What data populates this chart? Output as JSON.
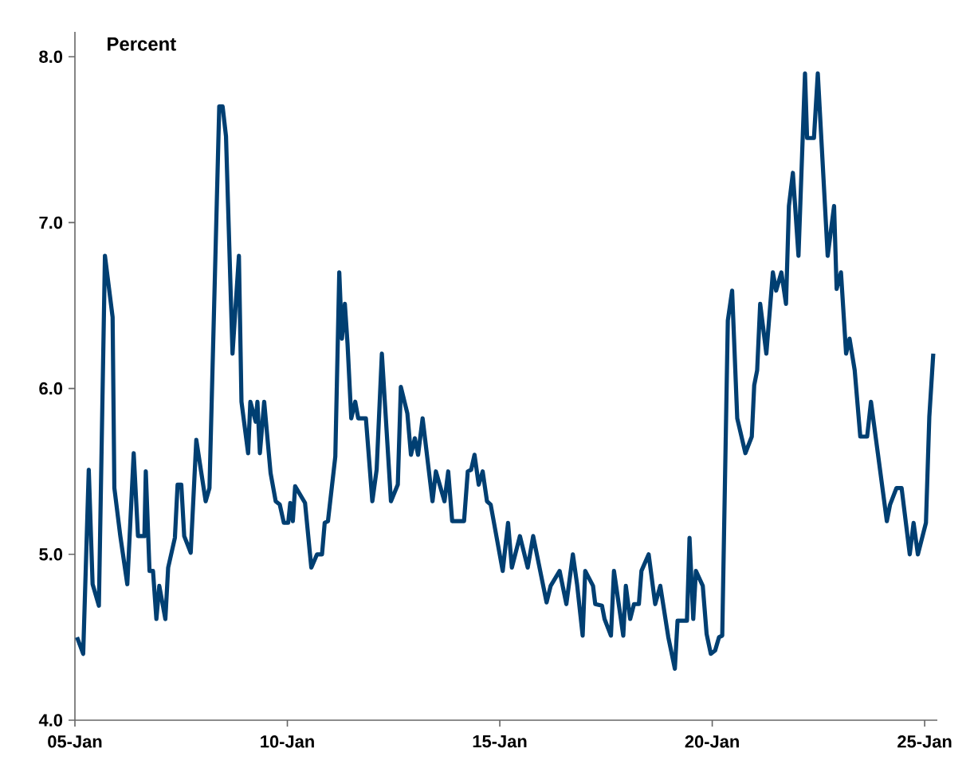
{
  "chart_data": {
    "type": "line",
    "ylabel": "Percent",
    "x": [
      "2005-01-19",
      "2005-03-13",
      "2005-04-30",
      "2005-06-02",
      "2005-07-26",
      "2005-09-16",
      "2005-11-21",
      "2005-12-06",
      "2006-01-26",
      "2006-03-27",
      "2006-05-21",
      "2006-06-27",
      "2006-08-21",
      "2006-09-02",
      "2006-10-04",
      "2006-11-03",
      "2006-12-02",
      "2006-12-27",
      "2007-02-17",
      "2007-03-13",
      "2007-05-10",
      "2007-06-02",
      "2007-07-04",
      "2007-07-29",
      "2007-09-23",
      "2007-11-10",
      "2008-01-29",
      "2008-03-02",
      "2008-05-25",
      "2008-06-23",
      "2008-07-22",
      "2008-09-16",
      "2008-11-10",
      "2008-12-02",
      "2009-01-29",
      "2009-02-17",
      "2009-04-04",
      "2009-04-19",
      "2009-05-10",
      "2009-06-16",
      "2009-08-10",
      "2009-09-23",
      "2009-10-28",
      "2009-12-02",
      "2010-01-08",
      "2010-01-26",
      "2010-02-17",
      "2010-03-09",
      "2010-06-02",
      "2010-07-26",
      "2010-09-13",
      "2010-10-26",
      "2010-11-18",
      "2010-12-16",
      "2011-02-17",
      "2011-03-23",
      "2011-04-15",
      "2011-05-10",
      "2011-06-02",
      "2011-07-04",
      "2011-08-07",
      "2011-09-02",
      "2011-11-07",
      "2012-01-01",
      "2012-02-07",
      "2012-03-23",
      "2012-06-09",
      "2012-08-07",
      "2012-09-02",
      "2012-10-28",
      "2012-11-28",
      "2013-01-01",
      "2013-01-29",
      "2013-03-09",
      "2013-06-02",
      "2013-07-01",
      "2013-08-07",
      "2013-09-13",
      "2013-10-15",
      "2013-11-18",
      "2014-02-28",
      "2014-04-01",
      "2014-04-30",
      "2014-05-29",
      "2014-07-04",
      "2014-08-07",
      "2014-09-13",
      "2014-10-15",
      "2015-01-26",
      "2015-03-13",
      "2015-04-15",
      "2015-06-23",
      "2015-08-29",
      "2015-10-15",
      "2016-02-07",
      "2016-03-13",
      "2016-05-29",
      "2016-07-26",
      "2016-09-20",
      "2016-10-26",
      "2016-12-13",
      "2017-01-05",
      "2017-03-13",
      "2017-04-01",
      "2017-05-29",
      "2017-06-20",
      "2017-08-14",
      "2017-09-09",
      "2017-11-28",
      "2017-12-20",
      "2018-01-26",
      "2018-02-28",
      "2018-04-11",
      "2018-05-03",
      "2018-07-04",
      "2018-08-29",
      "2018-10-12",
      "2018-12-20",
      "2019-02-14",
      "2019-03-09",
      "2019-05-29",
      "2019-06-20",
      "2019-07-22",
      "2019-08-14",
      "2019-10-12",
      "2019-11-14",
      "2019-12-20",
      "2020-01-26",
      "2020-02-28",
      "2020-03-27",
      "2020-05-14",
      "2020-06-20",
      "2020-08-03",
      "2020-10-12",
      "2020-12-06",
      "2020-12-27",
      "2021-01-22",
      "2021-02-17",
      "2021-04-11",
      "2021-06-06",
      "2021-07-04",
      "2021-08-18",
      "2021-09-27",
      "2021-10-22",
      "2021-11-25",
      "2022-01-12",
      "2022-03-09",
      "2022-03-27",
      "2022-05-25",
      "2022-06-27",
      "2022-09-20",
      "2022-11-14",
      "2022-12-06",
      "2023-01-12",
      "2023-02-25",
      "2023-03-27",
      "2023-05-10",
      "2023-06-27",
      "2023-08-25",
      "2023-09-27",
      "2023-11-25",
      "2024-02-10",
      "2024-03-09",
      "2024-05-03",
      "2024-06-16",
      "2024-08-25",
      "2024-09-27",
      "2024-11-03",
      "2025-01-12",
      "2025-02-10",
      "2025-03-16"
    ],
    "series": [
      {
        "color": "#003f72",
        "values": [
          4.5,
          4.4,
          5.51,
          4.82,
          4.69,
          6.8,
          6.43,
          5.4,
          5.11,
          4.82,
          5.61,
          5.11,
          5.11,
          5.5,
          4.9,
          4.9,
          4.61,
          4.81,
          4.61,
          4.92,
          5.1,
          5.42,
          5.42,
          5.11,
          5.01,
          5.69,
          5.32,
          5.4,
          7.7,
          7.7,
          7.52,
          6.21,
          6.8,
          5.92,
          5.61,
          5.92,
          5.8,
          5.92,
          5.61,
          5.92,
          5.49,
          5.32,
          5.3,
          5.19,
          5.19,
          5.31,
          5.2,
          5.41,
          5.31,
          4.92,
          5.0,
          5.0,
          5.19,
          5.2,
          5.59,
          6.7,
          6.3,
          6.51,
          6.27,
          5.82,
          5.92,
          5.82,
          5.82,
          5.32,
          5.51,
          6.21,
          5.32,
          5.42,
          6.01,
          5.85,
          5.6,
          5.7,
          5.6,
          5.82,
          5.32,
          5.5,
          5.41,
          5.32,
          5.5,
          5.2,
          5.2,
          5.5,
          5.51,
          5.6,
          5.42,
          5.5,
          5.32,
          5.3,
          4.9,
          5.19,
          4.92,
          5.11,
          4.92,
          5.11,
          4.71,
          4.81,
          4.9,
          4.7,
          5.0,
          4.82,
          4.51,
          4.9,
          4.81,
          4.7,
          4.69,
          4.61,
          4.51,
          4.9,
          4.51,
          4.81,
          4.61,
          4.7,
          4.7,
          4.9,
          5.0,
          4.7,
          4.81,
          4.5,
          4.31,
          4.6,
          4.6,
          5.1,
          4.61,
          4.9,
          4.81,
          4.52,
          4.4,
          4.42,
          4.5,
          4.51,
          6.41,
          6.59,
          5.82,
          5.61,
          5.71,
          6.02,
          6.11,
          6.51,
          6.21,
          6.7,
          6.59,
          6.7,
          6.51,
          7.1,
          7.3,
          6.8,
          7.9,
          7.51,
          7.51,
          7.9,
          6.8,
          7.1,
          6.6,
          6.7,
          6.21,
          6.3,
          6.11,
          5.71,
          5.71,
          5.92,
          5.61,
          5.2,
          5.3,
          5.4,
          5.4,
          5.0,
          5.19,
          5.0,
          5.19,
          5.83,
          6.21
        ]
      }
    ],
    "xlim": [
      "2005-01-01",
      "2025-04-20"
    ],
    "xticks": [
      {
        "value": "2005-01-01",
        "label": "05-Jan"
      },
      {
        "value": "2010-01-01",
        "label": "10-Jan"
      },
      {
        "value": "2015-01-01",
        "label": "15-Jan"
      },
      {
        "value": "2020-01-01",
        "label": "20-Jan"
      },
      {
        "value": "2025-01-01",
        "label": "25-Jan"
      }
    ],
    "ylim": [
      4,
      8.15
    ],
    "yticks": [
      {
        "value": 4,
        "label": "4.0"
      },
      {
        "value": 5,
        "label": "5.0"
      },
      {
        "value": 6,
        "label": "6.0"
      },
      {
        "value": 7,
        "label": "7.0"
      },
      {
        "value": 8,
        "label": "8.0"
      }
    ],
    "marker": "none",
    "line_style": "solid"
  }
}
